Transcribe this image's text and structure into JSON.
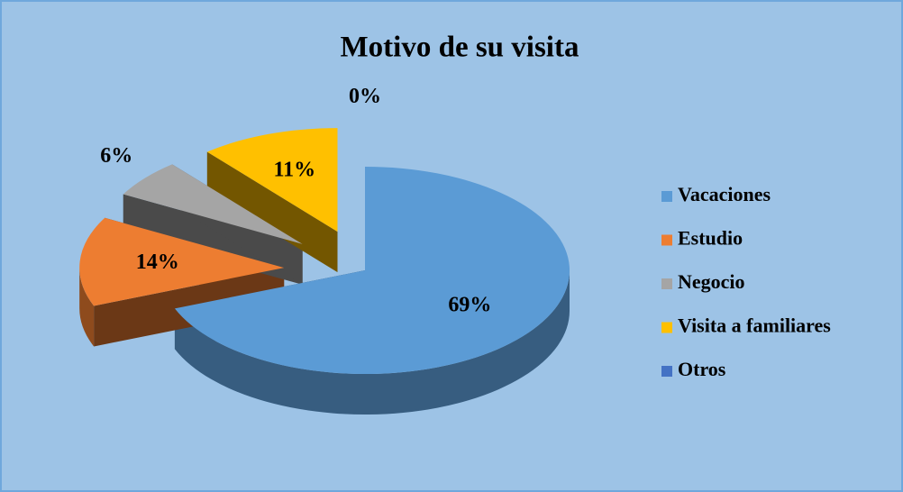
{
  "chart_data": {
    "type": "pie",
    "title": "Motivo de su visita",
    "categories": [
      "Vacaciones",
      "Estudio",
      "Negocio",
      "Visita a familiares",
      "Otros"
    ],
    "values": [
      69,
      14,
      6,
      11,
      0
    ],
    "value_labels": [
      "69%",
      "14%",
      "6%",
      "11%",
      "0%"
    ],
    "colors": [
      "#5b9bd5",
      "#ed7d31",
      "#a5a5a5",
      "#ffc000",
      "#4472c4"
    ],
    "legend": "right"
  }
}
